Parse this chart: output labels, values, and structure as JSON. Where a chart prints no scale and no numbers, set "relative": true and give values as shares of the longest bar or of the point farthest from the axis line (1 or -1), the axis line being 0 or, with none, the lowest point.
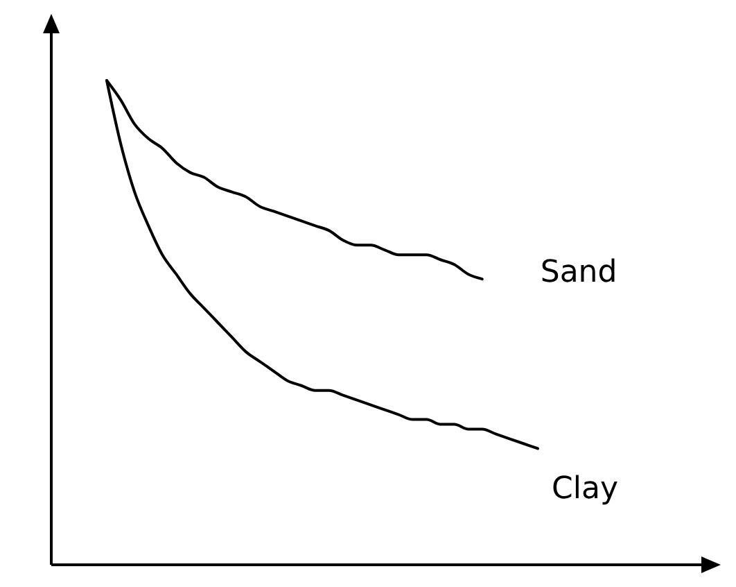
{
  "chart_data": {
    "type": "line",
    "relative": true,
    "categories": [
      null,
      null,
      null,
      null,
      null,
      null,
      null,
      null,
      null,
      null,
      null,
      null,
      null,
      null,
      null,
      null,
      null,
      null,
      null,
      null,
      null,
      null,
      null,
      null,
      null,
      null,
      null,
      null,
      null,
      null,
      null,
      null
    ],
    "series": [
      {
        "name": "Sand",
        "color": "#000000",
        "values": [
          1.0,
          0.96,
          0.91,
          0.88,
          0.86,
          0.83,
          0.81,
          0.8,
          0.78,
          0.77,
          0.76,
          0.74,
          0.73,
          0.72,
          0.71,
          0.7,
          0.69,
          0.67,
          0.66,
          0.66,
          0.65,
          0.64,
          0.64,
          0.64,
          0.63,
          0.62,
          0.6,
          0.59,
          null,
          null,
          null,
          null
        ]
      },
      {
        "name": "Clay",
        "color": "#000000",
        "values": [
          1.0,
          0.87,
          0.77,
          0.7,
          0.64,
          0.6,
          0.56,
          0.53,
          0.5,
          0.47,
          0.44,
          0.42,
          0.4,
          0.38,
          0.37,
          0.36,
          0.36,
          0.35,
          0.34,
          0.33,
          0.32,
          0.31,
          0.3,
          0.3,
          0.29,
          0.29,
          0.28,
          0.28,
          0.27,
          0.26,
          0.25,
          0.24
        ]
      }
    ]
  }
}
